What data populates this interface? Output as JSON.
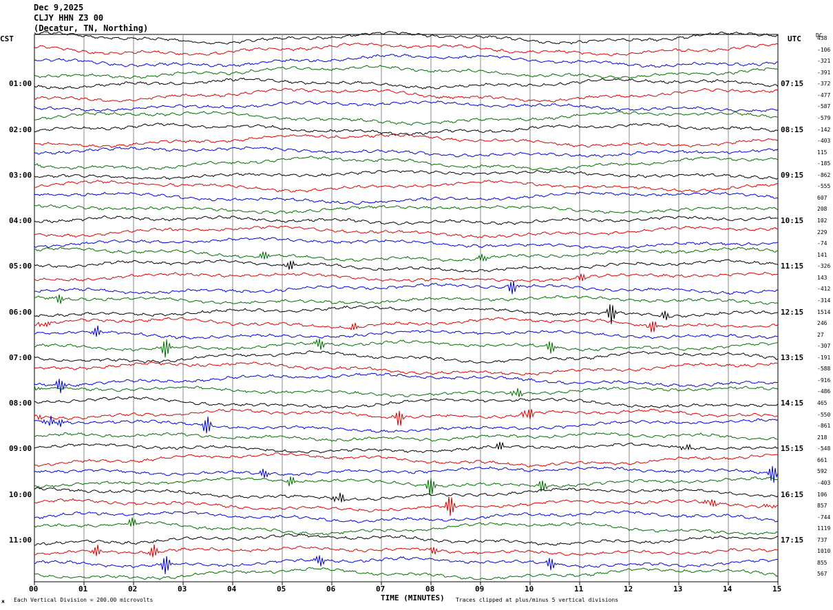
{
  "header": {
    "date": "Dec 9,2025",
    "station": "CLJY HHN Z3 00",
    "location": "(Decatur, TN, Northing)"
  },
  "left_tz": "CST",
  "right_tz": "UTC",
  "dc_label": "DC",
  "footer": {
    "scale": "Each Vertical Division =  200.00 microvolts",
    "clip": "Traces clipped at plus/minus 5 vertical divisions",
    "mark": "ж"
  },
  "chart_data": {
    "type": "line",
    "xlabel": "TIME (MINUTES)",
    "x_ticks": [
      "00",
      "01",
      "02",
      "03",
      "04",
      "05",
      "06",
      "07",
      "08",
      "09",
      "10",
      "11",
      "12",
      "13",
      "14",
      "15"
    ],
    "xlim": [
      0,
      15
    ],
    "left_hour_labels": [
      "01:00",
      "02:00",
      "03:00",
      "04:00",
      "05:00",
      "06:00",
      "07:00",
      "08:00",
      "09:00",
      "10:00",
      "11:00"
    ],
    "right_hour_labels": [
      "07:15",
      "08:15",
      "09:15",
      "10:15",
      "11:15",
      "12:15",
      "13:15",
      "14:15",
      "15:15",
      "16:15",
      "17:15"
    ],
    "trace_colors": [
      "#000000",
      "#e00000",
      "#0000e0",
      "#007000"
    ],
    "trace_count": 48,
    "dc_offsets": [
      "438",
      "-106",
      "-321",
      "-391",
      "-372",
      "-477",
      "-587",
      "-579",
      "-142",
      "-403",
      "115",
      "-185",
      "-862",
      "-555",
      "607",
      "208",
      "102",
      "229",
      "-74",
      "141",
      "-326",
      "143",
      "-412",
      "-314",
      "1514",
      "246",
      "27",
      "-307",
      "-191",
      "-588",
      "-916",
      "-486",
      "465",
      "-550",
      "-861",
      "218",
      "-548",
      "661",
      "592",
      "-403",
      "106",
      "857",
      "-744",
      "1119",
      "737",
      "1010",
      "855",
      "567"
    ]
  }
}
